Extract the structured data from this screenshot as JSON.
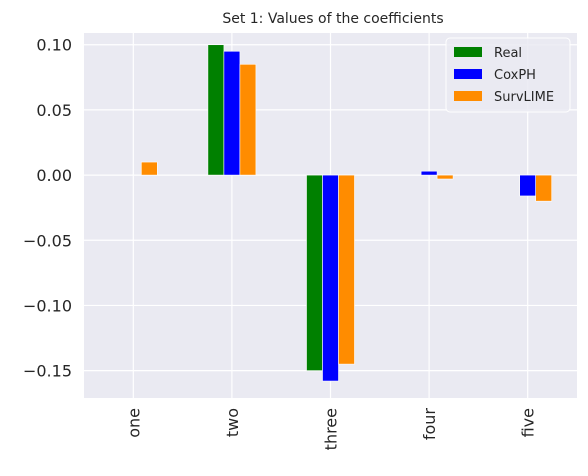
{
  "chart_data": {
    "type": "bar",
    "title": "Set 1: Values of the coefficients",
    "xlabel": "",
    "ylabel": "",
    "categories": [
      "one",
      "two",
      "three",
      "four",
      "five"
    ],
    "series": [
      {
        "name": "Real",
        "color": "#008000",
        "values": [
          0.0,
          0.1,
          -0.15,
          0.0,
          0.0
        ]
      },
      {
        "name": "CoxPH",
        "color": "#0000ff",
        "values": [
          0.0,
          0.095,
          -0.158,
          0.003,
          -0.016
        ]
      },
      {
        "name": "SurvLIME",
        "color": "#ff8c00",
        "values": [
          0.01,
          0.085,
          -0.145,
          -0.003,
          -0.02
        ]
      }
    ],
    "ylim": [
      -0.171,
      0.109
    ],
    "yticks": [
      0.1,
      0.05,
      0.0,
      -0.05,
      -0.1,
      -0.15
    ],
    "ytick_labels": [
      "0.10",
      "0.05",
      "0.00",
      "−0.05",
      "−0.10",
      "−0.15"
    ],
    "grid": true,
    "legend_position": "top-right",
    "background": "#eaeaf2",
    "grid_color": "#ffffff"
  }
}
